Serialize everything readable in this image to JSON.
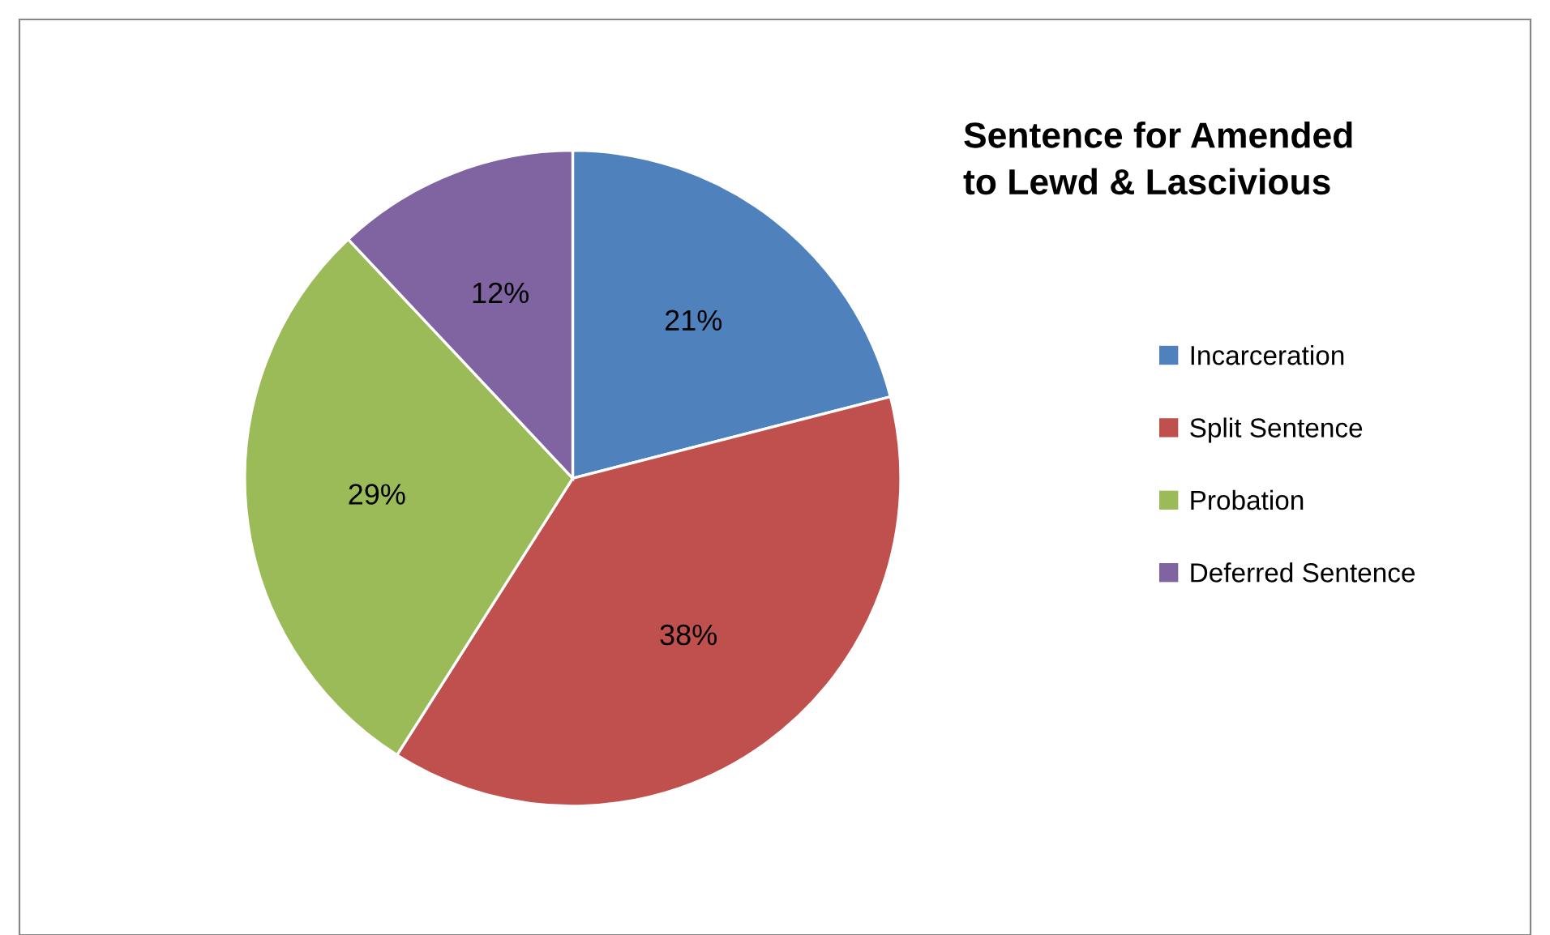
{
  "chart_data": {
    "type": "pie",
    "title": "Sentence for Amended\nto Lewd & Lascivious",
    "categories": [
      "Incarceration",
      "Split Sentence",
      "Probation",
      "Deferred Sentence"
    ],
    "values": [
      21,
      38,
      29,
      12
    ],
    "value_labels": [
      "21%",
      "38%",
      "29%",
      "12%"
    ],
    "colors": [
      "#4f81bd",
      "#c0504d",
      "#9bbb59",
      "#8064a2"
    ],
    "legend": "right"
  }
}
